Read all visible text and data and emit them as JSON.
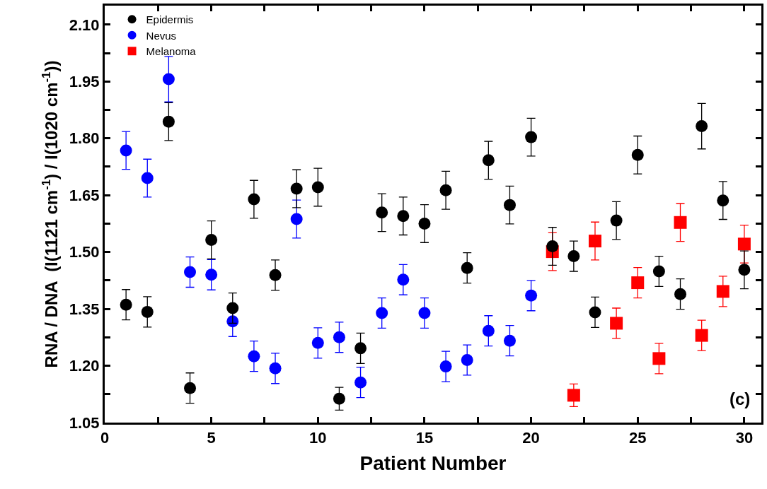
{
  "chart_data": {
    "type": "scatter",
    "xlabel": "Patient Number",
    "ylabel": "RNA / DNA  (I(1121 cm$^{-1}$) / I(1020 cm$^{-1}$))",
    "annotations": [
      "(c)"
    ],
    "xlim": [
      0,
      30.8
    ],
    "ylim": [
      1.05,
      2.15
    ],
    "xticks": [
      0,
      {
        "value": 2.5,
        "label": null
      },
      5,
      {
        "value": 7.5,
        "label": null
      },
      10,
      {
        "value": 12.5,
        "label": null
      },
      15,
      {
        "value": 17.5,
        "label": null
      },
      20,
      {
        "value": 22.5,
        "label": null
      },
      25,
      {
        "value": 27.5,
        "label": null
      },
      30
    ],
    "yticks": [
      1.05,
      {
        "value": 1.125,
        "label": null
      },
      "1.20",
      {
        "value": 1.275,
        "label": null
      },
      1.35,
      {
        "value": 1.425,
        "label": null
      },
      "1.50",
      {
        "value": 1.575,
        "label": null
      },
      1.65,
      {
        "value": 1.725,
        "label": null
      },
      "1.80",
      {
        "value": 1.875,
        "label": null
      },
      1.95,
      {
        "value": 2.025,
        "label": null
      },
      "2.10"
    ],
    "grid": false,
    "legend": "top left",
    "series": [
      {
        "name": "Epidermis",
        "color": "#000000",
        "marker": "circle",
        "x": [
          1,
          2,
          3,
          4,
          5,
          6,
          7,
          8,
          9,
          10,
          11,
          12,
          13,
          14,
          15,
          16,
          17,
          18,
          19,
          20,
          21,
          22,
          23,
          24,
          25,
          26,
          27,
          28,
          29,
          30
        ],
        "values": [
          1.361,
          1.342,
          1.844,
          1.141,
          1.532,
          1.352,
          1.639,
          1.439,
          1.667,
          1.671,
          1.113,
          1.246,
          1.604,
          1.595,
          1.575,
          1.663,
          1.458,
          1.742,
          1.624,
          1.803,
          1.515,
          1.489,
          1.341,
          1.583,
          1.756,
          1.449,
          1.389,
          1.832,
          1.636,
          1.453
        ],
        "errors": [
          0.04,
          0.04,
          0.05,
          0.04,
          0.05,
          0.04,
          0.05,
          0.04,
          0.05,
          0.05,
          0.03,
          0.04,
          0.05,
          0.05,
          0.05,
          0.05,
          0.04,
          0.05,
          0.05,
          0.05,
          0.05,
          0.04,
          0.04,
          0.05,
          0.05,
          0.04,
          0.04,
          0.06,
          0.05,
          0.05
        ]
      },
      {
        "name": "Nevus",
        "color": "#0000ff",
        "marker": "circle",
        "x": [
          1,
          2,
          3,
          4,
          5,
          6,
          7,
          8,
          9,
          10,
          11,
          12,
          13,
          14,
          15,
          16,
          17,
          18,
          19,
          20
        ],
        "values": [
          1.768,
          1.695,
          1.956,
          1.447,
          1.44,
          1.317,
          1.225,
          1.193,
          1.587,
          1.26,
          1.275,
          1.156,
          1.339,
          1.427,
          1.339,
          1.198,
          1.215,
          1.292,
          1.266,
          1.385
        ],
        "errors": [
          0.05,
          0.05,
          0.06,
          0.04,
          0.04,
          0.04,
          0.04,
          0.04,
          0.05,
          0.04,
          0.04,
          0.04,
          0.04,
          0.04,
          0.04,
          0.04,
          0.04,
          0.04,
          0.04,
          0.04
        ]
      },
      {
        "name": "Melanoma",
        "color": "#ff0000",
        "marker": "square",
        "x": [
          21,
          22,
          23,
          24,
          25,
          26,
          27,
          28,
          29,
          30
        ],
        "values": [
          1.501,
          1.122,
          1.529,
          1.312,
          1.419,
          1.219,
          1.578,
          1.28,
          1.396,
          1.521
        ],
        "errors": [
          0.05,
          0.03,
          0.05,
          0.04,
          0.04,
          0.04,
          0.05,
          0.04,
          0.04,
          0.05
        ]
      }
    ]
  }
}
